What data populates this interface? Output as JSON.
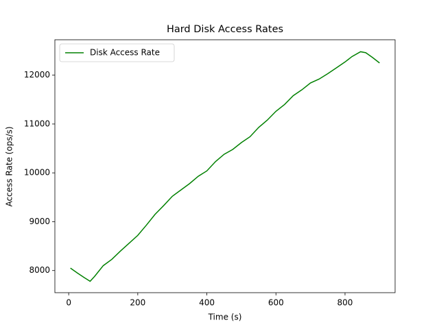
{
  "chart_data": {
    "type": "line",
    "title": "Hard Disk Access Rates",
    "x_label": "Time (s)",
    "y_label": "Access Rate (ops/s)",
    "x": [
      5,
      25,
      45,
      62,
      75,
      100,
      125,
      150,
      175,
      200,
      225,
      250,
      275,
      300,
      325,
      350,
      375,
      400,
      425,
      450,
      475,
      500,
      525,
      550,
      575,
      600,
      625,
      650,
      675,
      700,
      725,
      750,
      775,
      800,
      820,
      845,
      860,
      880,
      900
    ],
    "series": [
      {
        "name": "Disk Access Rate",
        "color": "#008000",
        "values": [
          8050,
          7950,
          7855,
          7780,
          7880,
          8100,
          8230,
          8400,
          8560,
          8720,
          8930,
          9150,
          9330,
          9520,
          9650,
          9780,
          9930,
          10040,
          10230,
          10380,
          10480,
          10620,
          10740,
          10930,
          11080,
          11260,
          11400,
          11580,
          11700,
          11840,
          11920,
          12030,
          12150,
          12270,
          12380,
          12480,
          12460,
          12360,
          12250
        ]
      }
    ],
    "xlim": [
      -40,
      945
    ],
    "ylim": [
      7547,
      12725
    ],
    "xticks": [
      0,
      200,
      400,
      600,
      800
    ],
    "yticks": [
      8000,
      9000,
      10000,
      11000,
      12000
    ],
    "legend": "upper left"
  }
}
